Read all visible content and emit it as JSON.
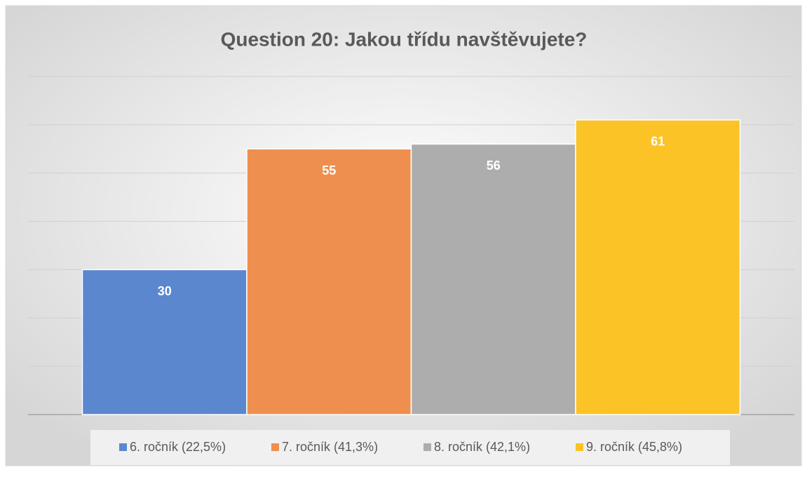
{
  "chart_data": {
    "type": "bar",
    "title": "Question 20: Jakou třídu navštěvujete?",
    "series": [
      {
        "name": "6. ročník (22,5%)",
        "color": "#5b87cf",
        "values": [
          30
        ]
      },
      {
        "name": "7. ročník (41,3%)",
        "color": "#ef8f4f",
        "values": [
          55
        ]
      },
      {
        "name": "8. ročník (42,1%)",
        "color": "#adadad",
        "values": [
          56
        ]
      },
      {
        "name": "9. ročník (45,8%)",
        "color": "#fbc325",
        "values": [
          61
        ]
      }
    ],
    "ylim": [
      0,
      70
    ],
    "yticks": [
      0,
      10,
      20,
      30,
      40,
      50,
      60,
      70
    ],
    "grid": true,
    "legend": "bottom"
  }
}
